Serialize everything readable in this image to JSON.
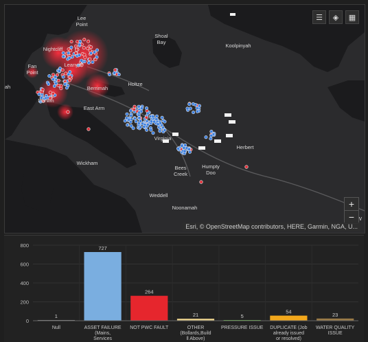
{
  "map": {
    "place_labels": [
      {
        "name": "place-lee-point",
        "lines": [
          "Lee",
          "Point"
        ]
      },
      {
        "name": "place-shoal-bay",
        "lines": [
          "Shoal",
          "Bay"
        ]
      },
      {
        "name": "place-koolpinyah",
        "lines": [
          "Koolpinyah"
        ]
      },
      {
        "name": "place-nightcliff",
        "lines": [
          "Nightcliff"
        ]
      },
      {
        "name": "place-leanyer",
        "lines": [
          "Leanyer"
        ]
      },
      {
        "name": "place-fannie-bay",
        "lines": [
          "Fan",
          "Point"
        ]
      },
      {
        "name": "place-holtze",
        "lines": [
          "Holtze"
        ]
      },
      {
        "name": "place-berrimah",
        "lines": [
          "Berrimah"
        ]
      },
      {
        "name": "place-darwin",
        "lines": [
          "Darwin"
        ]
      },
      {
        "name": "place-east-arm",
        "lines": [
          "East Arm"
        ]
      },
      {
        "name": "place-virginia",
        "lines": [
          "Virginia"
        ]
      },
      {
        "name": "place-herbert",
        "lines": [
          "Herbert"
        ]
      },
      {
        "name": "place-wickham",
        "lines": [
          "Wickham"
        ]
      },
      {
        "name": "place-bees-creek",
        "lines": [
          "Bees",
          "Creek"
        ]
      },
      {
        "name": "place-humpty-doo",
        "lines": [
          "Humpty",
          "Doo"
        ]
      },
      {
        "name": "place-weddell",
        "lines": [
          "Weddell"
        ]
      },
      {
        "name": "place-noonamah",
        "lines": [
          "Noonamah"
        ]
      },
      {
        "name": "place-wak-wak",
        "lines": [
          "Wak W"
        ]
      },
      {
        "name": "place-ah",
        "lines": [
          "ah"
        ]
      }
    ],
    "attribution": "Esri, © OpenStreetMap contributors, HERE, Garmin, NGA, U...",
    "tools": {
      "legend": "list-icon",
      "layers": "layers-icon",
      "basemap": "basemap-gallery-icon"
    },
    "zoom_in": "+",
    "zoom_out": "−",
    "colors": {
      "land": "#2b2b2d",
      "water": "#1d1d1f",
      "hotspot": "#ff2a3a",
      "point_blue": "#3b7fe0",
      "point_red": "#e0303a"
    }
  },
  "chart_data": {
    "type": "bar",
    "categories": [
      [
        "Null"
      ],
      [
        "ASSET FAILURE",
        "(Mains,",
        "Services"
      ],
      [
        "NOT PWC FAULT"
      ],
      [
        "OTHER",
        "(Bollards,Build",
        "ll Above)"
      ],
      [
        "PRESSURE ISSUE"
      ],
      [
        "DUPLICATE (Job",
        "already issued",
        "or resolved)"
      ],
      [
        "WATER QUALITY",
        "ISSUE"
      ]
    ],
    "values": [
      1,
      727,
      264,
      21,
      5,
      54,
      23
    ],
    "value_labels": [
      "1",
      "727",
      "264",
      "21",
      "5",
      "54",
      "23"
    ],
    "colors": [
      "#8c8c8c",
      "#7aaee0",
      "#e6262d",
      "#e8d08a",
      "#6cc04a",
      "#f2a71b",
      "#9a7a46"
    ],
    "yticks": [
      "0",
      "200",
      "400",
      "600",
      "800"
    ],
    "ylim": [
      0,
      800
    ]
  }
}
